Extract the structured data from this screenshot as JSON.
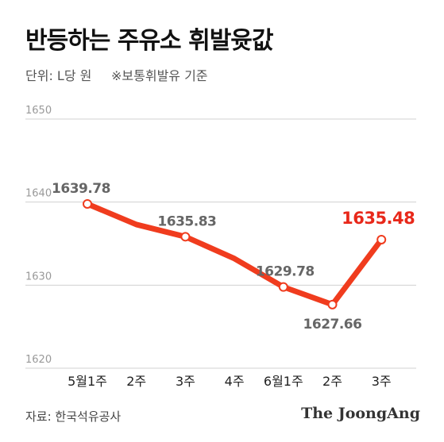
{
  "header": {
    "title": "반등하는 주유소 휘발윳값",
    "unit": "단위: L당 원",
    "basis": "※보통휘발유 기준"
  },
  "footer": {
    "source": "자료: 한국석유공사",
    "brand": "The JoongAng"
  },
  "colors": {
    "line": "#f03c1e",
    "highlight_label": "#e8281a",
    "label": "#666666",
    "grid": "#d0d0d0",
    "axis_label": "#999999"
  },
  "chart_data": {
    "type": "line",
    "title": "반등하는 주유소 휘발윳값",
    "xlabel": "",
    "ylabel": "",
    "ylim": [
      1620,
      1650
    ],
    "yticks": [
      1620,
      1630,
      1640,
      1650
    ],
    "grid": true,
    "categories": [
      "5월1주",
      "2주",
      "3주",
      "4주",
      "6월1주",
      "2주",
      "3주"
    ],
    "values": [
      1639.78,
      1637.3,
      1635.83,
      1633.2,
      1629.78,
      1627.66,
      1635.48
    ],
    "data_labels": [
      "1639.78",
      "",
      "1635.83",
      "",
      "1629.78",
      "1627.66",
      "1635.48"
    ]
  }
}
